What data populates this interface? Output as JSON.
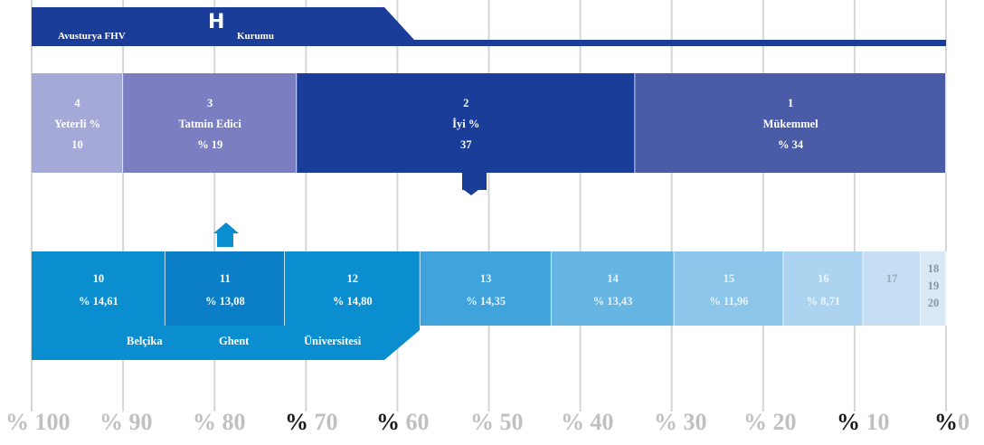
{
  "top_banner": {
    "left": "Avusturya FHV",
    "icon_char": "H",
    "right": "Kurumu",
    "color": "#1a3d99"
  },
  "bottom_banner": {
    "words": [
      "Belçika",
      "Ghent",
      "Üniversitesi"
    ],
    "color": "#0b8ed0"
  },
  "chart_data": [
    {
      "type": "bar",
      "orientation": "horizontal-stacked",
      "axis": "reversed",
      "segments": [
        {
          "lines": [
            "4",
            "Yeterli %",
            "10"
          ],
          "value": 10,
          "color": "#a5a9d8"
        },
        {
          "lines": [
            "3",
            "Tatmin Edici",
            "% 19"
          ],
          "value": 19,
          "color": "#7b7ec0"
        },
        {
          "lines": [
            "2",
            "İyi %",
            "37"
          ],
          "value": 37,
          "color": "#1a3d99"
        },
        {
          "lines": [
            "1",
            "Mükemmel",
            "% 34"
          ],
          "value": 34,
          "color": "#4a5ca8"
        }
      ]
    },
    {
      "type": "bar",
      "orientation": "horizontal-stacked",
      "axis": "reversed",
      "segments": [
        {
          "lines": [
            "10",
            "% 14,61"
          ],
          "value": 14.61,
          "color": "#0b8ed0",
          "text": "#ffffff"
        },
        {
          "lines": [
            "11",
            "% 13,08"
          ],
          "value": 13.08,
          "color": "#0a7fc8",
          "text": "#ffffff"
        },
        {
          "lines": [
            "12",
            "% 14,80"
          ],
          "value": 14.8,
          "color": "#0b8ed0",
          "text": "#ffffff"
        },
        {
          "lines": [
            "13",
            "% 14,35"
          ],
          "value": 14.35,
          "color": "#41a3dc",
          "text": "#e8f4fb"
        },
        {
          "lines": [
            "14",
            "% 13,43"
          ],
          "value": 13.43,
          "color": "#66b5e3",
          "text": "#e8f4fb"
        },
        {
          "lines": [
            "15",
            "% 11,96"
          ],
          "value": 11.96,
          "color": "#8cc6ea",
          "text": "#e8f4fb"
        },
        {
          "lines": [
            "16",
            "% 8,71"
          ],
          "value": 8.71,
          "color": "#acd3f0",
          "text": "#eef6fc"
        },
        {
          "lines": [
            "17"
          ],
          "value": 6.3,
          "color": "#c5def3",
          "text": "#9aa8b8"
        },
        {
          "lines": [
            "18",
            "19",
            "20"
          ],
          "value": 3.5,
          "color": "#d9e8f5",
          "text": "#8a96a6"
        }
      ]
    }
  ],
  "x_ticks": [
    {
      "pct": "%",
      "num": " 100",
      "dark": false
    },
    {
      "pct": "%",
      "num": " 90",
      "dark": false
    },
    {
      "pct": "%",
      "num": " 80",
      "dark": false
    },
    {
      "pct": "%",
      "num": " 70",
      "dark": true
    },
    {
      "pct": "%",
      "num": " 60",
      "dark": true
    },
    {
      "pct": "%",
      "num": " 50",
      "dark": false
    },
    {
      "pct": "%",
      "num": " 40",
      "dark": false
    },
    {
      "pct": "%",
      "num": " 30",
      "dark": false
    },
    {
      "pct": "%",
      "num": " 20",
      "dark": false
    },
    {
      "pct": "%",
      "num": " 10",
      "dark": true
    },
    {
      "pct": "%",
      "num": "0",
      "dark": true
    }
  ],
  "arrow_colors": {
    "down": "#1a3d99",
    "up": "#0b8ed0"
  }
}
